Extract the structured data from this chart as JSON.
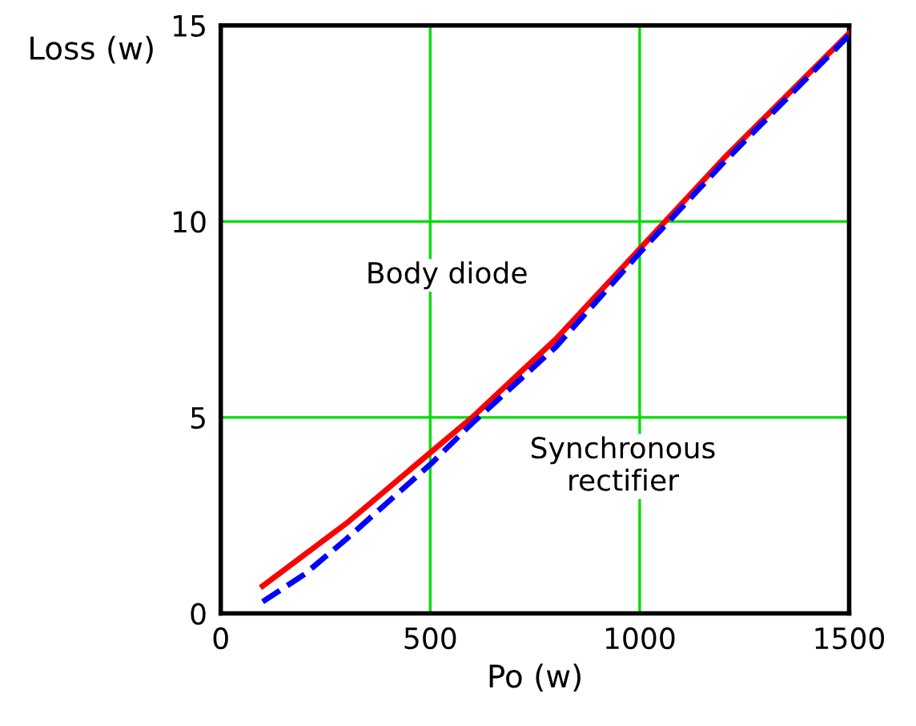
{
  "chart_data": {
    "type": "line",
    "xlabel": "Po (w)",
    "ylabel": "Loss (w)",
    "xlim": [
      0,
      1500
    ],
    "ylim": [
      0,
      15
    ],
    "xticks": [
      0,
      500,
      1000,
      1500
    ],
    "yticks": [
      0,
      5,
      10,
      15
    ],
    "grid": true,
    "legend": false,
    "series": [
      {
        "name": "Body diode",
        "color": "#ff0000",
        "line_style": "solid",
        "x": [
          100,
          300,
          500,
          600,
          800,
          1000,
          1200,
          1500
        ],
        "values": [
          0.7,
          2.3,
          4.1,
          5.0,
          7.0,
          9.3,
          11.6,
          14.8
        ]
      },
      {
        "name": "Synchronous rectifier",
        "color": "#0000ff",
        "line_style": "dashed",
        "x": [
          100,
          200,
          300,
          500,
          600,
          800,
          1000,
          1200,
          1500
        ],
        "values": [
          0.3,
          1.0,
          1.9,
          3.8,
          4.85,
          6.8,
          9.2,
          11.5,
          14.75
        ]
      }
    ]
  }
}
